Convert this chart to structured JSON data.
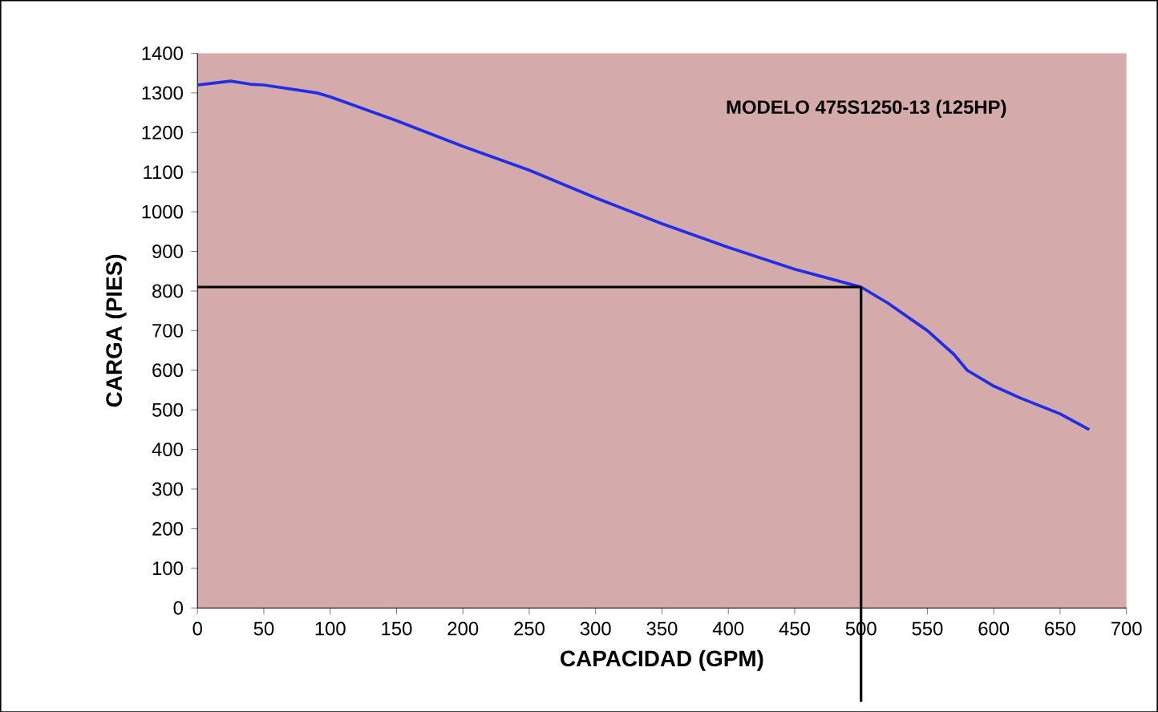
{
  "chart_data": {
    "type": "line",
    "xlabel": "CAPACIDAD (GPM)",
    "ylabel": "CARGA (PIES)",
    "annotations": [
      "MODELO 475S1250-13 (125HP)"
    ],
    "series": [
      {
        "color": "#1f2ee8",
        "x": [
          0,
          25,
          40,
          50,
          90,
          100,
          150,
          200,
          250,
          300,
          350,
          400,
          450,
          500,
          520,
          550,
          570,
          580,
          600,
          620,
          650,
          672
        ],
        "values": [
          1320,
          1330,
          1322,
          1320,
          1300,
          1290,
          1230,
          1165,
          1105,
          1035,
          970,
          910,
          855,
          810,
          770,
          700,
          640,
          600,
          560,
          530,
          490,
          450
        ]
      }
    ],
    "ref_lines": [
      {
        "axis": "x",
        "value": 500,
        "color": "#000000"
      },
      {
        "axis": "y",
        "value": 810,
        "color": "#000000"
      }
    ],
    "xlim": [
      0,
      700
    ],
    "ylim": [
      0,
      1400
    ],
    "xticks": [
      0,
      50,
      100,
      150,
      200,
      250,
      300,
      350,
      400,
      450,
      500,
      550,
      600,
      650,
      700
    ],
    "yticks": [
      0,
      100,
      200,
      300,
      400,
      500,
      600,
      700,
      800,
      900,
      1000,
      1100,
      1200,
      1300,
      1400
    ],
    "marker": "none",
    "line_style": "solid",
    "grid": false
  }
}
